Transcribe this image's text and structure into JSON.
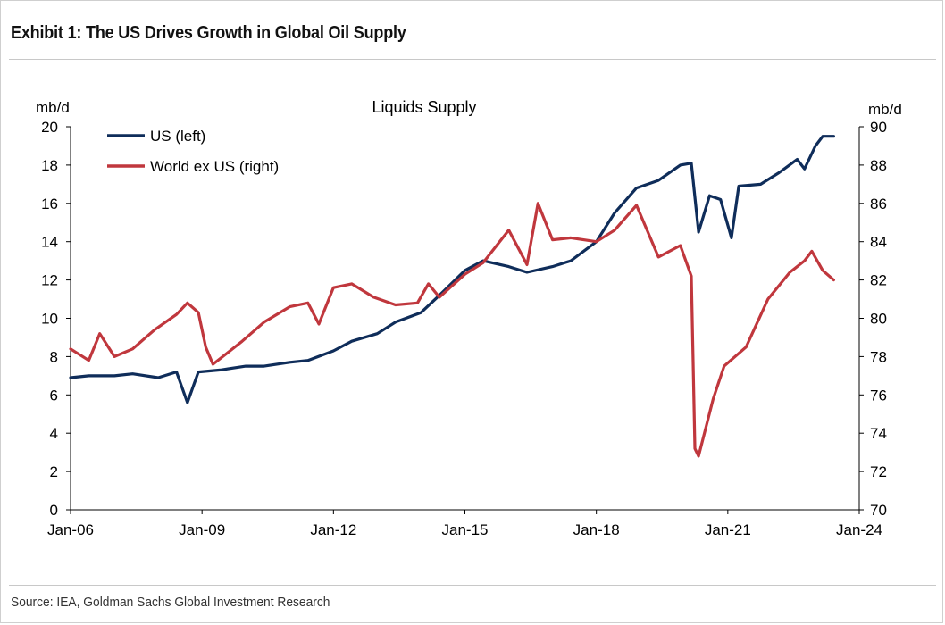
{
  "header": {
    "title": "Exhibit 1: The US Drives Growth in Global Oil Supply"
  },
  "footer": {
    "source": "Source: IEA, Goldman Sachs Global Investment Research"
  },
  "chart_data": {
    "type": "line",
    "title": "Liquids Supply",
    "y_left_unit": "mb/d",
    "y_right_unit": "mb/d",
    "ylim_left": [
      0,
      20
    ],
    "ylim_right": [
      70,
      90
    ],
    "y_left_ticks": [
      "0",
      "2",
      "4",
      "6",
      "8",
      "10",
      "12",
      "14",
      "16",
      "18",
      "20"
    ],
    "y_right_ticks": [
      "70",
      "72",
      "74",
      "76",
      "78",
      "80",
      "82",
      "84",
      "86",
      "88",
      "90"
    ],
    "x_range": [
      "2006-01",
      "2024-01"
    ],
    "x_ticks": [
      "Jan-06",
      "Jan-09",
      "Jan-12",
      "Jan-15",
      "Jan-18",
      "Jan-21",
      "Jan-24"
    ],
    "grid": false,
    "legend_position": "top-left",
    "colors": {
      "us": "#0f2d5a",
      "world_ex_us": "#c0373d"
    },
    "series": [
      {
        "name": "US (left)",
        "axis": "left",
        "points": [
          [
            "2006-01",
            6.9
          ],
          [
            "2006-06",
            7.0
          ],
          [
            "2007-01",
            7.0
          ],
          [
            "2007-06",
            7.1
          ],
          [
            "2008-01",
            6.9
          ],
          [
            "2008-06",
            7.2
          ],
          [
            "2008-09",
            5.6
          ],
          [
            "2008-12",
            7.2
          ],
          [
            "2009-06",
            7.3
          ],
          [
            "2010-01",
            7.5
          ],
          [
            "2010-06",
            7.5
          ],
          [
            "2011-01",
            7.7
          ],
          [
            "2011-06",
            7.8
          ],
          [
            "2012-01",
            8.3
          ],
          [
            "2012-06",
            8.8
          ],
          [
            "2013-01",
            9.2
          ],
          [
            "2013-06",
            9.8
          ],
          [
            "2014-01",
            10.3
          ],
          [
            "2014-06",
            11.2
          ],
          [
            "2015-01",
            12.5
          ],
          [
            "2015-06",
            13.0
          ],
          [
            "2016-01",
            12.7
          ],
          [
            "2016-06",
            12.4
          ],
          [
            "2017-01",
            12.7
          ],
          [
            "2017-06",
            13.0
          ],
          [
            "2018-01",
            14.0
          ],
          [
            "2018-06",
            15.5
          ],
          [
            "2018-12",
            16.8
          ],
          [
            "2019-06",
            17.2
          ],
          [
            "2019-12",
            18.0
          ],
          [
            "2020-03",
            18.1
          ],
          [
            "2020-05",
            14.5
          ],
          [
            "2020-08",
            16.4
          ],
          [
            "2020-11",
            16.2
          ],
          [
            "2021-02",
            14.2
          ],
          [
            "2021-04",
            16.9
          ],
          [
            "2021-10",
            17.0
          ],
          [
            "2022-03",
            17.6
          ],
          [
            "2022-08",
            18.3
          ],
          [
            "2022-10",
            17.8
          ],
          [
            "2023-01",
            19.0
          ],
          [
            "2023-03",
            19.5
          ],
          [
            "2023-06",
            19.5
          ]
        ]
      },
      {
        "name": "World ex US (right)",
        "axis": "right",
        "points": [
          [
            "2006-01",
            78.4
          ],
          [
            "2006-06",
            77.8
          ],
          [
            "2006-09",
            79.2
          ],
          [
            "2007-01",
            78.0
          ],
          [
            "2007-06",
            78.4
          ],
          [
            "2007-12",
            79.4
          ],
          [
            "2008-06",
            80.2
          ],
          [
            "2008-09",
            80.8
          ],
          [
            "2008-12",
            80.3
          ],
          [
            "2009-02",
            78.5
          ],
          [
            "2009-04",
            77.6
          ],
          [
            "2009-08",
            78.2
          ],
          [
            "2009-12",
            78.8
          ],
          [
            "2010-06",
            79.8
          ],
          [
            "2011-01",
            80.6
          ],
          [
            "2011-06",
            80.8
          ],
          [
            "2011-09",
            79.7
          ],
          [
            "2012-01",
            81.6
          ],
          [
            "2012-06",
            81.8
          ],
          [
            "2012-12",
            81.1
          ],
          [
            "2013-06",
            80.7
          ],
          [
            "2013-12",
            80.8
          ],
          [
            "2014-03",
            81.8
          ],
          [
            "2014-06",
            81.1
          ],
          [
            "2015-01",
            82.3
          ],
          [
            "2015-06",
            82.9
          ],
          [
            "2016-01",
            84.6
          ],
          [
            "2016-06",
            82.8
          ],
          [
            "2016-09",
            86.0
          ],
          [
            "2017-01",
            84.1
          ],
          [
            "2017-06",
            84.2
          ],
          [
            "2018-01",
            84.0
          ],
          [
            "2018-06",
            84.6
          ],
          [
            "2018-12",
            85.9
          ],
          [
            "2019-06",
            83.2
          ],
          [
            "2019-12",
            83.8
          ],
          [
            "2020-03",
            82.2
          ],
          [
            "2020-04",
            73.2
          ],
          [
            "2020-05",
            72.8
          ],
          [
            "2020-09",
            75.8
          ],
          [
            "2020-12",
            77.5
          ],
          [
            "2021-06",
            78.5
          ],
          [
            "2021-12",
            81.0
          ],
          [
            "2022-06",
            82.4
          ],
          [
            "2022-10",
            83.0
          ],
          [
            "2022-12",
            83.5
          ],
          [
            "2023-03",
            82.5
          ],
          [
            "2023-06",
            82.0
          ]
        ]
      }
    ]
  }
}
